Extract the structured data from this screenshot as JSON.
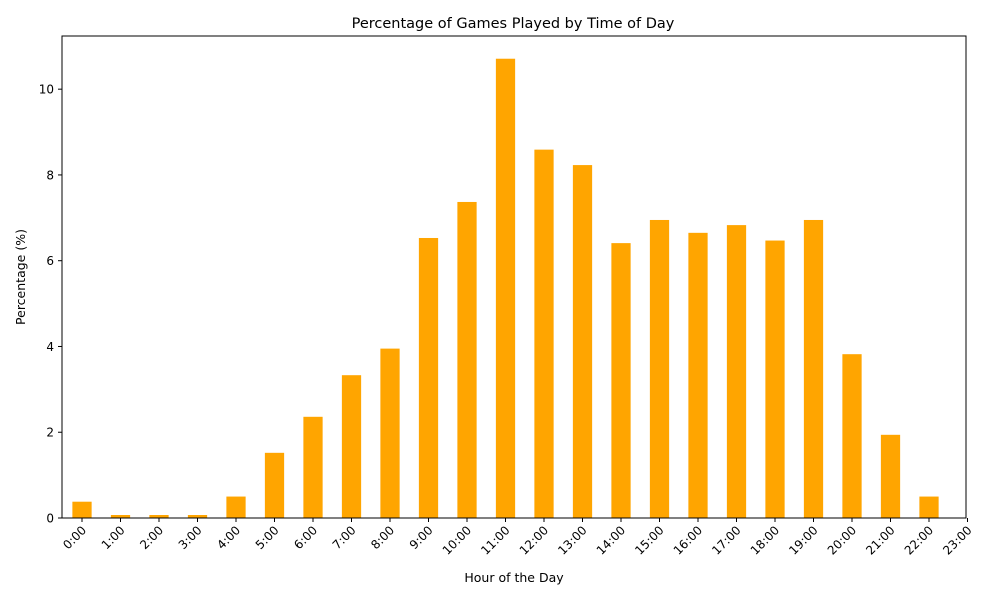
{
  "chart_data": {
    "type": "bar",
    "title": "Percentage of Games Played by Time of Day",
    "xlabel": "Hour of the Day",
    "ylabel": "Percentage (%)",
    "categories": [
      "0:00",
      "1:00",
      "2:00",
      "3:00",
      "4:00",
      "5:00",
      "6:00",
      "7:00",
      "8:00",
      "9:00",
      "10:00",
      "11:00",
      "12:00",
      "13:00",
      "14:00",
      "15:00",
      "16:00",
      "17:00",
      "18:00",
      "19:00",
      "20:00",
      "21:00",
      "22:00",
      "23:00"
    ],
    "values": [
      0.38,
      0.07,
      0.07,
      0.07,
      0.5,
      1.52,
      2.36,
      3.33,
      3.95,
      6.53,
      7.37,
      10.71,
      8.59,
      8.23,
      6.41,
      6.95,
      6.65,
      6.83,
      6.47,
      6.95,
      3.82,
      1.94,
      0.5,
      null
    ],
    "ylim": [
      0,
      11.24
    ],
    "yticks": [
      0,
      2,
      4,
      6,
      8,
      10
    ],
    "bar_color": "#FFA500",
    "grid": false,
    "legend": "none"
  }
}
